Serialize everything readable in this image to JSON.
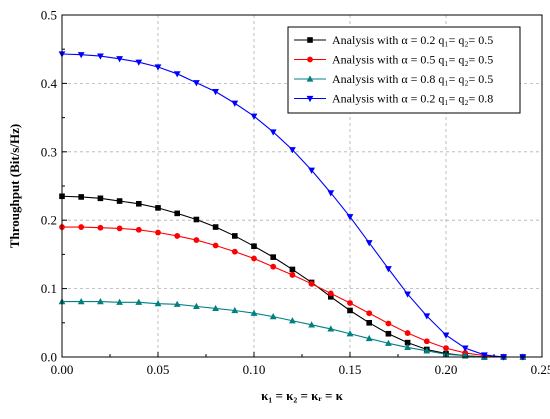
{
  "chart_data": {
    "type": "line",
    "xlabel": "κ₁ = κ₂ = κᵣ = κ",
    "ylabel": "Throughput (Bit/s/Hz)",
    "xlim": [
      0.0,
      0.25
    ],
    "ylim": [
      0.0,
      0.5
    ],
    "xticks": [
      "0.00",
      "0.05",
      "0.10",
      "0.15",
      "0.20",
      "0.25"
    ],
    "yticks": [
      "0.0",
      "0.1",
      "0.2",
      "0.3",
      "0.4",
      "0.5"
    ],
    "grid": "dashed",
    "legend_position": "top-right",
    "x": [
      0.0,
      0.01,
      0.02,
      0.03,
      0.04,
      0.05,
      0.06,
      0.07,
      0.08,
      0.09,
      0.1,
      0.11,
      0.12,
      0.13,
      0.14,
      0.15,
      0.16,
      0.17,
      0.18,
      0.19,
      0.2,
      0.21,
      0.22,
      0.23,
      0.24
    ],
    "series": [
      {
        "name": "Analysis with α = 0.2 q₁= q₂= 0.5",
        "color": "#000000",
        "marker": "square",
        "values": [
          0.235,
          0.234,
          0.232,
          0.228,
          0.224,
          0.218,
          0.21,
          0.201,
          0.19,
          0.177,
          0.162,
          0.146,
          0.128,
          0.109,
          0.088,
          0.068,
          0.05,
          0.034,
          0.021,
          0.011,
          0.005,
          0.002,
          0.0,
          0.0,
          0.0
        ]
      },
      {
        "name": "Analysis with α = 0.5 q₁= q₂= 0.5",
        "color": "#ff0000",
        "marker": "circle",
        "values": [
          0.19,
          0.19,
          0.189,
          0.188,
          0.186,
          0.182,
          0.177,
          0.171,
          0.163,
          0.154,
          0.144,
          0.132,
          0.12,
          0.107,
          0.093,
          0.079,
          0.064,
          0.049,
          0.035,
          0.023,
          0.013,
          0.006,
          0.002,
          0.0,
          0.0
        ]
      },
      {
        "name": "Analysis with α = 0.8 q₁= q₂= 0.5",
        "color": "#008080",
        "marker": "triangle-up",
        "values": [
          0.081,
          0.081,
          0.081,
          0.08,
          0.08,
          0.078,
          0.077,
          0.074,
          0.071,
          0.068,
          0.064,
          0.059,
          0.053,
          0.047,
          0.041,
          0.034,
          0.027,
          0.02,
          0.014,
          0.009,
          0.004,
          0.002,
          0.0,
          0.0,
          0.0
        ]
      },
      {
        "name": "Analysis with α = 0.2 q₁= q₂= 0.8",
        "color": "#0000ff",
        "marker": "triangle-down",
        "values": [
          0.443,
          0.442,
          0.44,
          0.436,
          0.431,
          0.424,
          0.414,
          0.401,
          0.388,
          0.371,
          0.352,
          0.329,
          0.303,
          0.273,
          0.24,
          0.205,
          0.167,
          0.129,
          0.092,
          0.06,
          0.032,
          0.013,
          0.003,
          0.0,
          0.0
        ]
      }
    ]
  }
}
